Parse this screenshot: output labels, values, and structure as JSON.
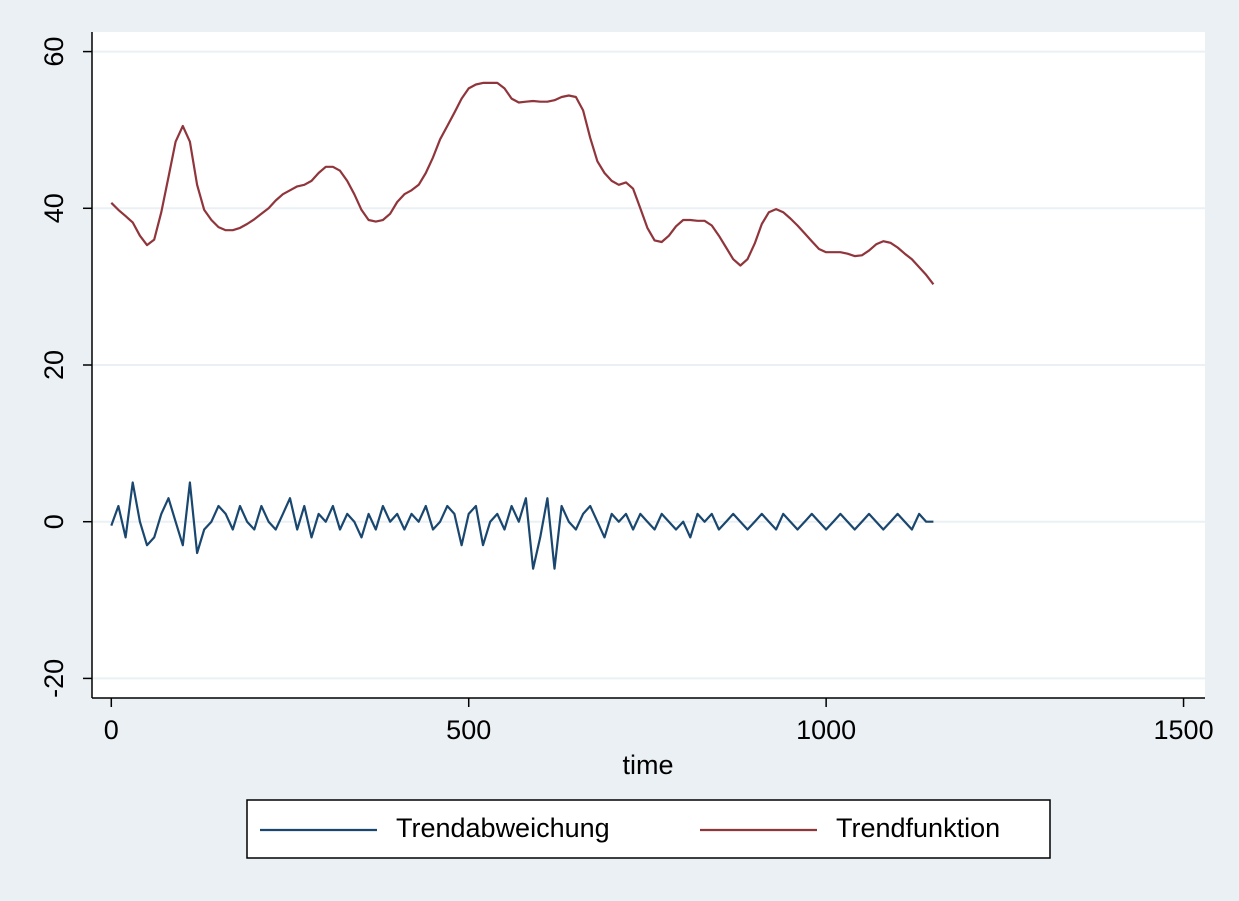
{
  "chart_data": {
    "type": "line",
    "x_label": "time",
    "x": [
      0,
      10,
      20,
      30,
      40,
      50,
      60,
      70,
      80,
      90,
      100,
      110,
      120,
      130,
      140,
      150,
      160,
      170,
      180,
      190,
      200,
      210,
      220,
      230,
      240,
      250,
      260,
      270,
      280,
      290,
      300,
      310,
      320,
      330,
      340,
      350,
      360,
      370,
      380,
      390,
      400,
      410,
      420,
      430,
      440,
      450,
      460,
      470,
      480,
      490,
      500,
      510,
      520,
      530,
      540,
      550,
      560,
      570,
      580,
      590,
      600,
      610,
      620,
      630,
      640,
      650,
      660,
      670,
      680,
      690,
      700,
      710,
      720,
      730,
      740,
      750,
      760,
      770,
      780,
      790,
      800,
      810,
      820,
      830,
      840,
      850,
      860,
      870,
      880,
      890,
      900,
      910,
      920,
      930,
      940,
      950,
      960,
      970,
      980,
      990,
      1000,
      1010,
      1020,
      1030,
      1040,
      1050,
      1060,
      1070,
      1080,
      1090,
      1100,
      1110,
      1120,
      1130,
      1140,
      1150
    ],
    "series": [
      {
        "name": "Trendabweichung",
        "color": "#1a476f",
        "values": [
          -0.5,
          2,
          -2,
          5,
          0,
          -3,
          -2,
          1,
          3,
          0,
          -3,
          5,
          -4,
          -1,
          0,
          2,
          1,
          -1,
          2,
          0,
          -1,
          2,
          0,
          -1,
          1,
          3,
          -1,
          2,
          -2,
          1,
          0,
          2,
          -1,
          1,
          0,
          -2,
          1,
          -1,
          2,
          0,
          1,
          -1,
          1,
          0,
          2,
          -1,
          0,
          2,
          1,
          -3,
          1,
          2,
          -3,
          0,
          1,
          -1,
          2,
          0,
          3,
          -6,
          -2,
          3,
          -6,
          2,
          0,
          -1,
          1,
          2,
          0,
          -2,
          1,
          0,
          1,
          -1,
          1,
          0,
          -1,
          1,
          0,
          -1,
          0,
          -2,
          1,
          0,
          1,
          -1,
          0,
          1,
          0,
          -1,
          0,
          1,
          0,
          -1,
          1,
          0,
          -1,
          0,
          1,
          0,
          -1,
          0,
          1,
          0,
          -1,
          0,
          1,
          0,
          -1,
          0,
          1,
          0,
          -1,
          1,
          0,
          0
        ]
      },
      {
        "name": "Trendfunktion",
        "color": "#90353b",
        "values": [
          40.7,
          39.8,
          39,
          38.2,
          36.5,
          35.3,
          36,
          39.5,
          44,
          48.5,
          50.5,
          48.5,
          43,
          39.8,
          38.5,
          37.6,
          37.2,
          37.2,
          37.5,
          38,
          38.6,
          39.3,
          40,
          41,
          41.8,
          42.3,
          42.8,
          43,
          43.5,
          44.5,
          45.3,
          45.3,
          44.8,
          43.5,
          41.8,
          39.8,
          38.5,
          38.3,
          38.5,
          39.3,
          40.8,
          41.8,
          42.3,
          43,
          44.5,
          46.5,
          48.8,
          50.5,
          52.2,
          54,
          55.3,
          55.8,
          56,
          56,
          56,
          55.3,
          54,
          53.5,
          53.6,
          53.7,
          53.6,
          53.6,
          53.8,
          54.2,
          54.4,
          54.2,
          52.5,
          49,
          46,
          44.5,
          43.5,
          43,
          43.3,
          42.5,
          40,
          37.5,
          35.9,
          35.7,
          36.5,
          37.7,
          38.5,
          38.5,
          38.4,
          38.4,
          37.8,
          36.5,
          35,
          33.5,
          32.7,
          33.5,
          35.5,
          38,
          39.5,
          39.9,
          39.5,
          38.7,
          37.8,
          36.8,
          35.8,
          34.8,
          34.4,
          34.4,
          34.4,
          34.2,
          33.9,
          34,
          34.6,
          35.4,
          35.8,
          35.6,
          35,
          34.2,
          33.5,
          32.5,
          31.5,
          30.3
        ]
      }
    ],
    "xlim": [
      -27,
      1530
    ],
    "xticks": [
      0,
      500,
      1000,
      1500
    ],
    "ylim": [
      -22.5,
      62.5
    ],
    "yticks": [
      -20,
      0,
      20,
      40,
      60
    ],
    "grid": true,
    "legend": "bottom"
  }
}
